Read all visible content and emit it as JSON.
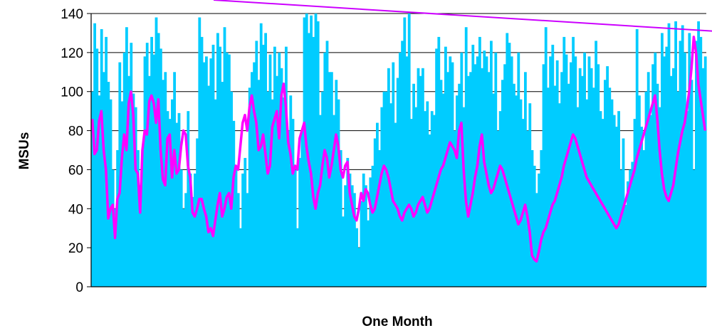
{
  "chart_data": {
    "type": "bar",
    "xlabel": "One Month",
    "ylabel": "MSUs",
    "ylim": [
      0,
      140
    ],
    "ytick_values": [
      0,
      20,
      40,
      60,
      80,
      100,
      120,
      140
    ],
    "ytick_labels": [
      "0",
      "20",
      "40",
      "60",
      "80",
      "100",
      "120",
      "140"
    ],
    "grid": "horizontal",
    "series": [
      {
        "type": "bar",
        "color": "#00ccff",
        "values": [
          100,
          135,
          122,
          98,
          132,
          110,
          128,
          105,
          96,
          60,
          40,
          70,
          115,
          95,
          120,
          133,
          108,
          125,
          99,
          92,
          70,
          52,
          70,
          118,
          125,
          108,
          128,
          119,
          138,
          130,
          122,
          106,
          110,
          90,
          86,
          96,
          110,
          84,
          89,
          60,
          40,
          48,
          90,
          58,
          46,
          58,
          76,
          138,
          128,
          115,
          118,
          103,
          117,
          124,
          96,
          130,
          123,
          105,
          133,
          120,
          119,
          100,
          85,
          62,
          48,
          30,
          58,
          66,
          48,
          102,
          110,
          115,
          126,
          106,
          135,
          124,
          130,
          100,
          119,
          96,
          123,
          108,
          120,
          112,
          97,
          123,
          80,
          98,
          86,
          60,
          30,
          66,
          80,
          138,
          140,
          130,
          139,
          128,
          140,
          136,
          88,
          100,
          120,
          126,
          110,
          110,
          88,
          106,
          96,
          70,
          36,
          52,
          66,
          58,
          52,
          48,
          30,
          20,
          44,
          58,
          52,
          34,
          56,
          62,
          76,
          84,
          70,
          92,
          100,
          100,
          112,
          94,
          115,
          84,
          107,
          120,
          126,
          138,
          118,
          140,
          86,
          104,
          92,
          112,
          108,
          112,
          90,
          95,
          78,
          90,
          88,
          122,
          128,
          106,
          99,
          123,
          110,
          118,
          115,
          80,
          98,
          104,
          120,
          92,
          133,
          108,
          110,
          124,
          114,
          118,
          128,
          112,
          121,
          118,
          110,
          126,
          99,
          120,
          80,
          90,
          106,
          114,
          130,
          125,
          118,
          104,
          98,
          120,
          96,
          86,
          110,
          80,
          94,
          70,
          62,
          48,
          58,
          70,
          114,
          133,
          102,
          118,
          124,
          103,
          116,
          94,
          110,
          128,
          119,
          104,
          115,
          128,
          118,
          92,
          112,
          108,
          120,
          96,
          118,
          112,
          102,
          126,
          114,
          90,
          86,
          106,
          113,
          102,
          96,
          88,
          82,
          90,
          60,
          76,
          42,
          54,
          60,
          64,
          86,
          132,
          98,
          82,
          70,
          100,
          110,
          88,
          114,
          120,
          104,
          92,
          130,
          118,
          123,
          135,
          108,
          112,
          136,
          100,
          126,
          134,
          120,
          90,
          130,
          106,
          60,
          126,
          136,
          128,
          112,
          118
        ]
      },
      {
        "type": "line",
        "color": "#ff00ff",
        "values": [
          86,
          68,
          70,
          85,
          90,
          70,
          60,
          35,
          40,
          42,
          25,
          45,
          48,
          66,
          78,
          70,
          94,
          100,
          88,
          60,
          58,
          38,
          70,
          80,
          78,
          95,
          98,
          94,
          84,
          96,
          70,
          55,
          52,
          76,
          78,
          56,
          70,
          58,
          60,
          72,
          80,
          78,
          62,
          56,
          38,
          36,
          40,
          45,
          45,
          40,
          36,
          28,
          30,
          26,
          34,
          42,
          48,
          36,
          40,
          46,
          48,
          40,
          56,
          62,
          60,
          72,
          84,
          88,
          80,
          92,
          98,
          90,
          84,
          70,
          72,
          78,
          68,
          58,
          62,
          82,
          86,
          90,
          76,
          98,
          104,
          92,
          74,
          68,
          58,
          62,
          60,
          76,
          80,
          84,
          72,
          64,
          58,
          46,
          40,
          48,
          52,
          62,
          70,
          66,
          56,
          62,
          70,
          78,
          72,
          60,
          56,
          62,
          64,
          48,
          42,
          36,
          34,
          40,
          48,
          44,
          50,
          48,
          42,
          38,
          40,
          46,
          52,
          58,
          62,
          60,
          56,
          50,
          44,
          42,
          40,
          36,
          34,
          38,
          40,
          42,
          40,
          36,
          38,
          42,
          44,
          46,
          42,
          38,
          40,
          44,
          48,
          52,
          56,
          60,
          62,
          66,
          70,
          74,
          72,
          70,
          66,
          80,
          84,
          60,
          44,
          36,
          42,
          48,
          56,
          62,
          72,
          78,
          64,
          58,
          52,
          48,
          50,
          54,
          58,
          62,
          60,
          56,
          52,
          48,
          44,
          40,
          36,
          32,
          34,
          38,
          42,
          36,
          28,
          16,
          14,
          13,
          18,
          24,
          28,
          30,
          34,
          38,
          42,
          44,
          48,
          52,
          56,
          62,
          66,
          70,
          74,
          78,
          76,
          72,
          68,
          64,
          60,
          56,
          54,
          52,
          50,
          48,
          46,
          44,
          42,
          40,
          38,
          36,
          34,
          32,
          30,
          32,
          36,
          40,
          44,
          48,
          52,
          56,
          60,
          66,
          70,
          74,
          78,
          82,
          86,
          90,
          94,
          98,
          86,
          70,
          58,
          50,
          46,
          44,
          48,
          52,
          60,
          68,
          74,
          80,
          84,
          92,
          100,
          112,
          128,
          120,
          104,
          96,
          88,
          80
        ]
      }
    ],
    "annotations": [
      {
        "type": "arrow",
        "color": "#cc00ff",
        "target": {
          "x": 291,
          "y": 128
        }
      },
      {
        "type": "circle",
        "color": "#cc00ff",
        "center": {
          "x": 291,
          "y": 128
        }
      }
    ]
  }
}
